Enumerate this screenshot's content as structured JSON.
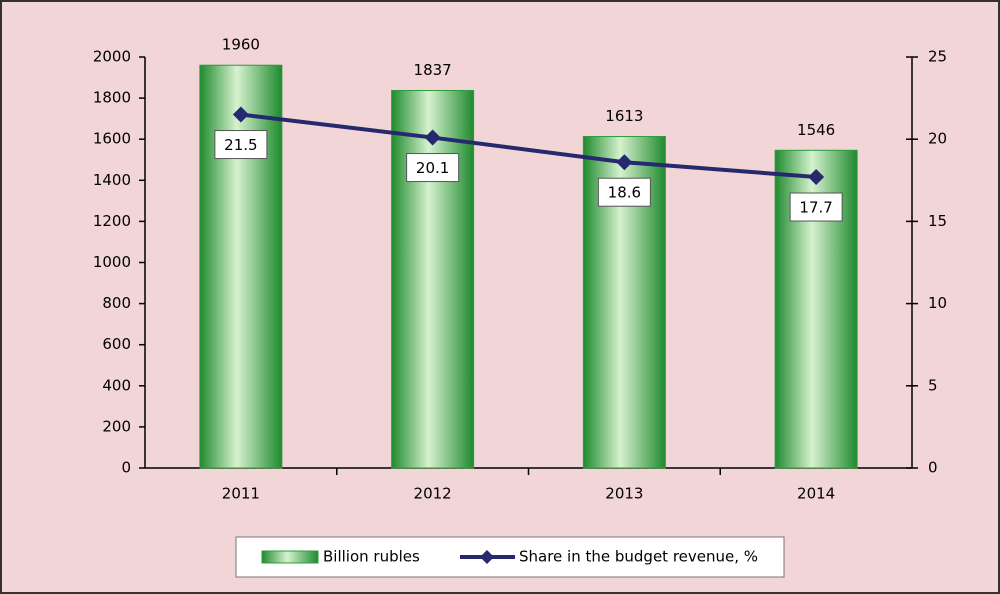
{
  "chart_data": {
    "type": "bar",
    "categories": [
      "2011",
      "2012",
      "2013",
      "2014"
    ],
    "series": [
      {
        "name": "Billion rubles",
        "type": "bar",
        "color": "#2e9a3e",
        "values": [
          1960,
          1837,
          1613,
          1546
        ]
      },
      {
        "name": "Share in the budget revenue, %",
        "type": "line",
        "axis": "y2",
        "color": "#27296e",
        "values": [
          21.5,
          20.1,
          18.6,
          17.7
        ]
      }
    ],
    "ylim": [
      0,
      2000
    ],
    "yticks": [
      0,
      200,
      400,
      600,
      800,
      1000,
      1200,
      1400,
      1600,
      1800,
      2000
    ],
    "y2lim": [
      0,
      25
    ],
    "y2ticks": [
      0,
      5,
      10,
      15,
      20,
      25
    ],
    "grid": false,
    "legend": "bottom"
  }
}
